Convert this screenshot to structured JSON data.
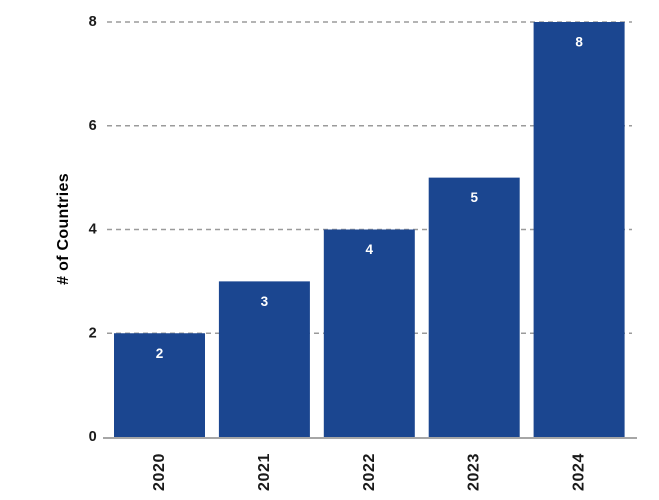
{
  "chart_data": {
    "type": "bar",
    "title": "",
    "categories": [
      "2020",
      "2021",
      "2022",
      "2023",
      "2024"
    ],
    "values": [
      2,
      3,
      4,
      5,
      8
    ],
    "bar_labels": [
      "2",
      "3",
      "4",
      "5",
      "8"
    ],
    "xlabel": "",
    "ylabel": "# of Countries",
    "yticks": [
      0,
      2,
      4,
      6,
      8
    ],
    "ylim": [
      0,
      8
    ],
    "grid": "horizontal-dashed",
    "legend": "none",
    "colors": {
      "bar": "#1B4690",
      "bar_label": "#FFFFFF",
      "grid_line": "#9B9B9B",
      "axis_line": "#A6A6A6",
      "tick_text": "#1A1A1A",
      "background": "#FFFFFF"
    }
  }
}
